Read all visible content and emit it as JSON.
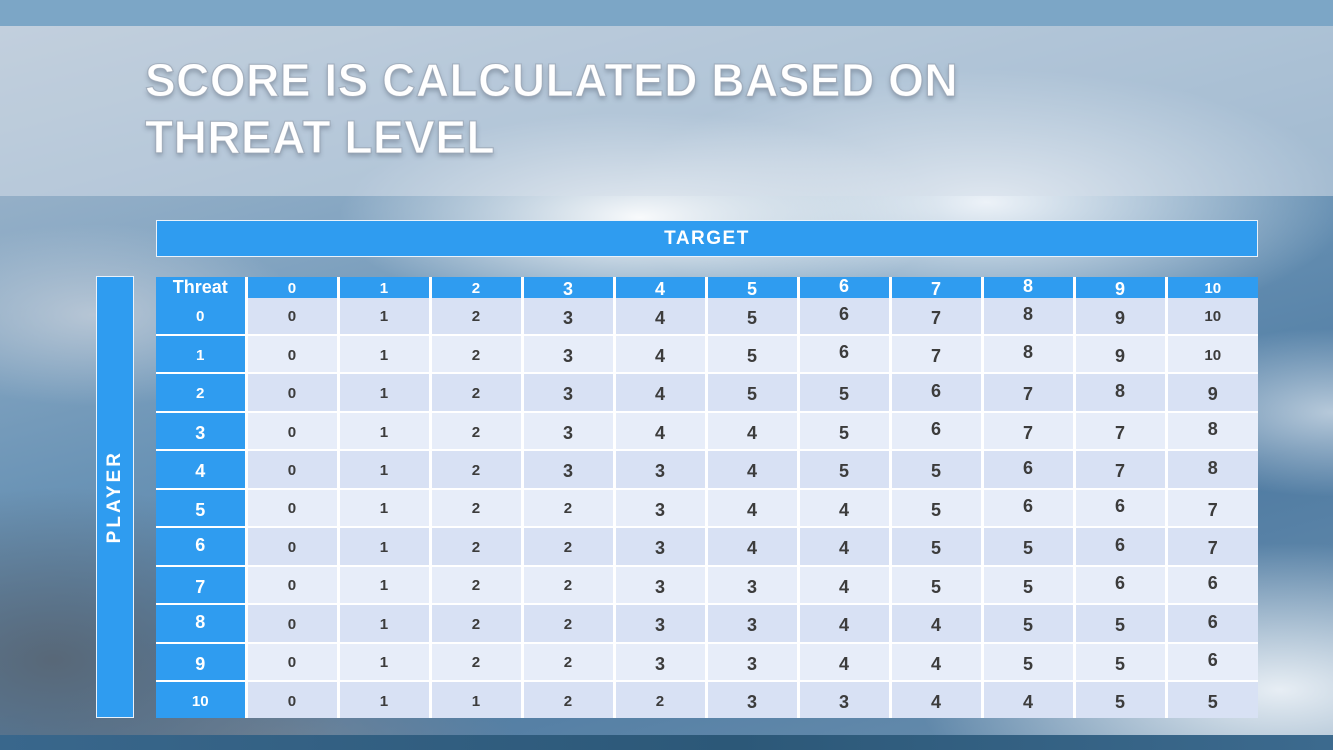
{
  "slide": {
    "title_line1": "SCORE IS CALCULATED BASED ON",
    "title_line2": "THREAT LEVEL"
  },
  "table": {
    "target_label": "TARGET",
    "player_label": "PLAYER",
    "corner_label": "Threat",
    "column_headers": [
      "0",
      "1",
      "2",
      "3",
      "4",
      "5",
      "6",
      "7",
      "8",
      "9",
      "10"
    ],
    "row_headers": [
      "0",
      "1",
      "2",
      "3",
      "4",
      "5",
      "6",
      "7",
      "8",
      "9",
      "10"
    ],
    "rows": [
      [
        0,
        1,
        2,
        3,
        4,
        5,
        6,
        7,
        8,
        9,
        10
      ],
      [
        0,
        1,
        2,
        3,
        4,
        5,
        6,
        7,
        8,
        9,
        10
      ],
      [
        0,
        1,
        2,
        3,
        4,
        5,
        5,
        6,
        7,
        8,
        9
      ],
      [
        0,
        1,
        2,
        3,
        4,
        4,
        5,
        6,
        7,
        7,
        8
      ],
      [
        0,
        1,
        2,
        3,
        3,
        4,
        5,
        5,
        6,
        7,
        8
      ],
      [
        0,
        1,
        2,
        2,
        3,
        4,
        4,
        5,
        6,
        6,
        7
      ],
      [
        0,
        1,
        2,
        2,
        3,
        4,
        4,
        5,
        5,
        6,
        7
      ],
      [
        0,
        1,
        2,
        2,
        3,
        3,
        4,
        5,
        5,
        6,
        6
      ],
      [
        0,
        1,
        2,
        2,
        3,
        3,
        4,
        4,
        5,
        5,
        6
      ],
      [
        0,
        1,
        2,
        2,
        3,
        3,
        4,
        4,
        5,
        5,
        6
      ],
      [
        0,
        1,
        1,
        2,
        2,
        3,
        3,
        4,
        4,
        5,
        5
      ]
    ]
  },
  "colors": {
    "accent_blue": "#2F9CF0",
    "band_light": "#D8E1F4",
    "band_lighter": "#E7EDF9",
    "top_bar": "#7CA6C6",
    "bottom_bar": "#2C5878",
    "cell_text": "#3C3C3C",
    "title_text": "#FFFFFF"
  }
}
